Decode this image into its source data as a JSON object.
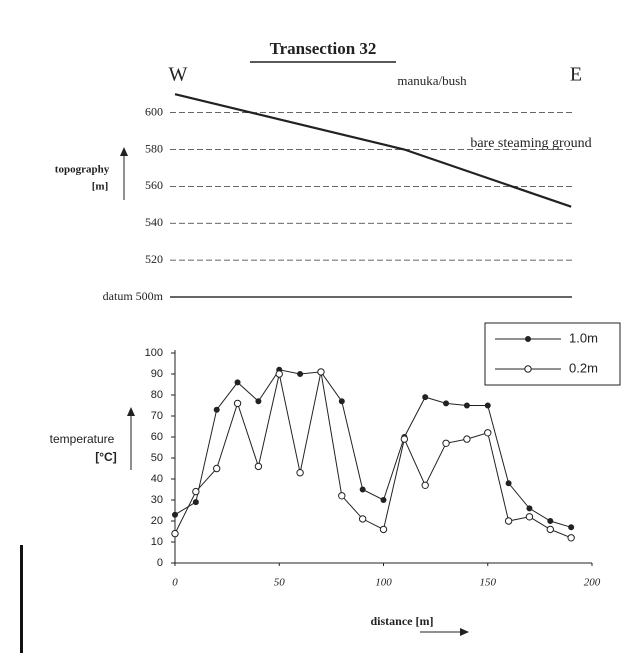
{
  "chart_data": [
    {
      "type": "line",
      "title": "Transection 32",
      "y_label": [
        "topography",
        "[m]"
      ],
      "annotations": [
        "W",
        "E",
        "manuka/bush",
        "bare steaming ground"
      ],
      "x": [
        0,
        110,
        190
      ],
      "values": [
        610,
        580,
        549
      ],
      "color": "#222222",
      "xlim": [
        0,
        200
      ],
      "ylim": [
        500,
        615
      ],
      "yticks": [
        {
          "value": 500,
          "label": "datum 500m"
        },
        520,
        540,
        560,
        580,
        600
      ],
      "grid": true
    },
    {
      "type": "line",
      "y_label": [
        "temperature",
        "[°C]"
      ],
      "x_label": "distance [m]",
      "x": [
        0,
        10,
        20,
        30,
        40,
        50,
        60,
        70,
        80,
        90,
        100,
        110,
        120,
        130,
        140,
        150,
        160,
        170,
        180,
        190
      ],
      "series": [
        {
          "name": "1.0m",
          "color": "#222222",
          "marker": "filled",
          "values": [
            23,
            29,
            73,
            86,
            77,
            92,
            90,
            91,
            77,
            35,
            30,
            60,
            79,
            76,
            75,
            75,
            38,
            26,
            20,
            17
          ]
        },
        {
          "name": "0.2m",
          "color": "#222222",
          "marker": "open",
          "values": [
            14,
            34,
            45,
            76,
            46,
            90,
            43,
            91,
            32,
            21,
            16,
            59,
            37,
            57,
            59,
            62,
            20,
            22,
            16,
            12
          ]
        }
      ],
      "xlim": [
        0,
        200
      ],
      "ylim": [
        0,
        100
      ],
      "xticks": [
        0,
        50,
        100,
        150,
        200
      ],
      "yticks": [
        0,
        10,
        20,
        30,
        40,
        50,
        60,
        70,
        80,
        90,
        100
      ],
      "legend": "upper right"
    }
  ]
}
